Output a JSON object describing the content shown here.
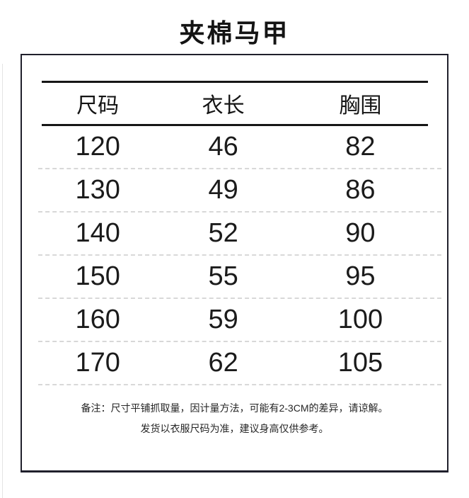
{
  "page": {
    "title": "夹棉马甲"
  },
  "chart_data": {
    "type": "table",
    "title": "夹棉马甲",
    "columns": [
      "尺码",
      "衣长",
      "胸围"
    ],
    "rows": [
      [
        "120",
        "46",
        "82"
      ],
      [
        "130",
        "49",
        "86"
      ],
      [
        "140",
        "52",
        "90"
      ],
      [
        "150",
        "55",
        "95"
      ],
      [
        "160",
        "59",
        "100"
      ],
      [
        "170",
        "62",
        "105"
      ]
    ],
    "notes": [
      "备注：尺寸平铺抓取量，因计量方法，可能有2-3CM的差异，请谅解。",
      "发货以衣服尺码为准，建议身高仅供参考。"
    ]
  },
  "colors": {
    "text": "#1a1a1a",
    "panel_border": "#20202c",
    "rule": "#161616",
    "divider": "#d8d8d8"
  }
}
